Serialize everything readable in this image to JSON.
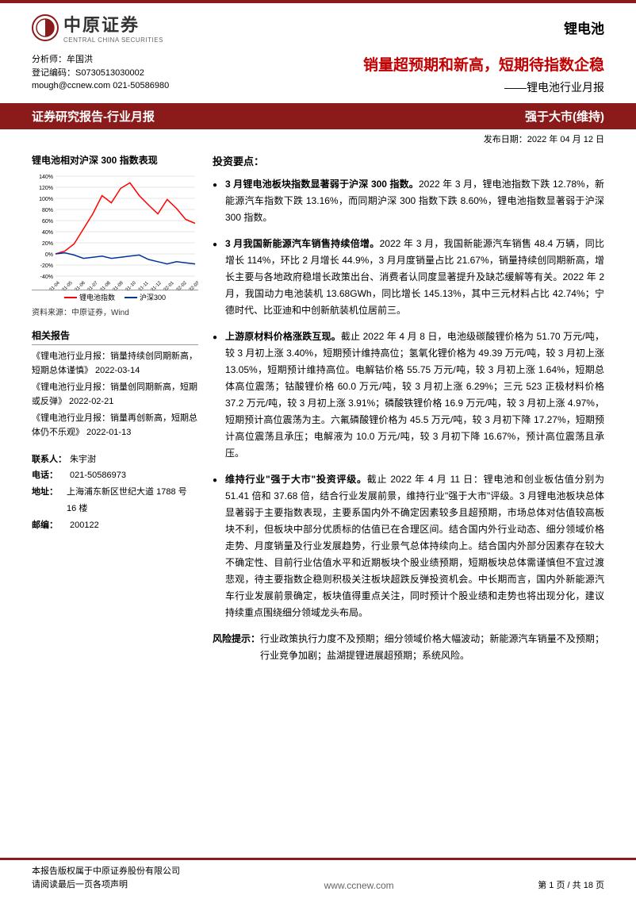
{
  "brand": {
    "cn": "中原证券",
    "en": "CENTRAL CHINA SECURITIES",
    "logo_symbol": "◑",
    "logo_color": "#8b1a1a"
  },
  "sector": "锂电池",
  "analyst": {
    "line1": "分析师：牟国洪",
    "line2": "登记编码：S0730513030002",
    "line3": "mough@ccnew.com  021-50586980"
  },
  "title": "销量超预期和新高，短期待指数企稳",
  "subtitle": "——锂电池行业月报",
  "band_left": "证券研究报告-行业月报",
  "band_right": "强于大市(维持)",
  "pub_date": "发布日期：2022 年 04 月 12 日",
  "chart": {
    "title": "锂电池相对沪深 300 指数表现",
    "x_labels": [
      "21-04",
      "21-05",
      "21-06",
      "21-07",
      "21-08",
      "21-09",
      "21-10",
      "21-11",
      "21-12",
      "22-01",
      "22-02",
      "22-03"
    ],
    "y_ticks": [
      "-40%",
      "-20%",
      "0%",
      "20%",
      "40%",
      "60%",
      "80%",
      "100%",
      "120%",
      "140%"
    ],
    "ylim": [
      -40,
      140
    ],
    "series": [
      {
        "name": "锂电池指数",
        "color": "#ff0000",
        "values": [
          0,
          5,
          18,
          45,
          72,
          105,
          92,
          118,
          128,
          105,
          88,
          72,
          98,
          82,
          62,
          55
        ]
      },
      {
        "name": "沪深300",
        "color": "#003399",
        "values": [
          0,
          2,
          -2,
          -8,
          -6,
          -4,
          -8,
          -6,
          -4,
          -2,
          -10,
          -14,
          -18,
          -14,
          -16,
          -18
        ]
      }
    ],
    "source": "资料来源：中原证券，Wind",
    "background": "#ffffff",
    "grid_color": "#cccccc"
  },
  "related_heading": "相关报告",
  "related": [
    "《锂电池行业月报：销量持续创同期新高，短期总体谨慎》  2022-03-14",
    "《锂电池行业月报：销量创同期新高，短期或反弹》  2022-02-21",
    "《锂电池行业月报：销量再创新高，短期总体仍不乐观》  2022-01-13"
  ],
  "contact": {
    "heading": "联系人：",
    "name": "朱宇澍",
    "phone_label": "电话：",
    "phone": "021-50586973",
    "addr_label": "地址：",
    "addr": "上海浦东新区世纪大道 1788 号 16 楼",
    "zip_label": "邮编：",
    "zip": "200122"
  },
  "invest_heading": "投资要点：",
  "bullets": [
    {
      "lead": "3 月锂电池板块指数显著弱于沪深 300 指数。",
      "body": "2022 年 3 月，锂电池指数下跌 12.78%，新能源汽车指数下跌 13.16%，而同期沪深 300 指数下跌 8.60%，锂电池指数显著弱于沪深 300 指数。"
    },
    {
      "lead": "3 月我国新能源汽车销售持续倍增。",
      "body": "2022 年 3 月，我国新能源汽车销售 48.4 万辆，同比增长 114%，环比 2 月增长 44.9%，3 月月度销量占比 21.67%，销量持续创同期新高，增长主要与各地政府稳增长政策出台、消费者认同度显著提升及缺芯缓解等有关。2022 年 2 月，我国动力电池装机 13.68GWh，同比增长 145.13%，其中三元材料占比 42.74%；宁德时代、比亚迪和中创新航装机位居前三。"
    },
    {
      "lead": "上游原材料价格涨跌互现。",
      "body": "截止 2022 年 4 月 8 日，电池级碳酸锂价格为 51.70 万元/吨，较 3 月初上涨 3.40%，短期预计维持高位；氢氧化锂价格为 49.39 万元/吨，较 3 月初上涨 13.05%，短期预计维持高位。电解钴价格 55.75 万元/吨，较 3 月初上涨 1.64%，短期总体高位震荡；钴酸锂价格 60.0 万元/吨，较 3 月初上涨 6.29%；三元 523 正极材料价格 37.2 万元/吨，较 3 月初上涨 3.91%；磷酸铁锂价格 16.9 万元/吨，较 3 月初上涨 4.97%，短期预计高位震荡为主。六氟磷酸锂价格为 45.5 万元/吨，较 3 月初下降 17.27%，短期预计高位震荡且承压；电解液为 10.0 万元/吨，较 3 月初下降 16.67%，预计高位震荡且承压。"
    },
    {
      "lead": "维持行业\"强于大市\"投资评级。",
      "body": "截止 2022 年 4 月 11 日：锂电池和创业板估值分别为 51.41 倍和 37.68 倍，结合行业发展前景，维持行业\"强于大市\"评级。3 月锂电池板块总体显著弱于主要指数表现，主要系国内外不确定因素较多且超预期，市场总体对估值较高板块不利，但板块中部分优质标的估值已在合理区间。结合国内外行业动态、细分领域价格走势、月度销量及行业发展趋势，行业景气总体持续向上。结合国内外部分因素存在较大不确定性、目前行业估值水平和近期板块个股业绩预期，短期板块总体需谨慎但不宜过渡悲观，待主要指数企稳则积极关注板块超跌反弹投资机会。中长期而言，国内外新能源汽车行业发展前景确定，板块值得重点关注，同时预计个股业绩和走势也将出现分化，建议持续重点围绕细分领域龙头布局。"
    }
  ],
  "risk_label": "风险提示：",
  "risk_body": "行业政策执行力度不及预期；细分领域价格大幅波动；新能源汽车销量不及预期；行业竞争加剧；盐湖提锂进展超预期；系统风险。",
  "footer": {
    "line1": "本报告版权属于中原证券股份有限公司",
    "line2": "请阅读最后一页各项声明",
    "url": "www.ccnew.com",
    "page": "第 1 页 / 共 18 页"
  },
  "colors": {
    "brand_red": "#8b1a1a",
    "title_red": "#c00000"
  }
}
